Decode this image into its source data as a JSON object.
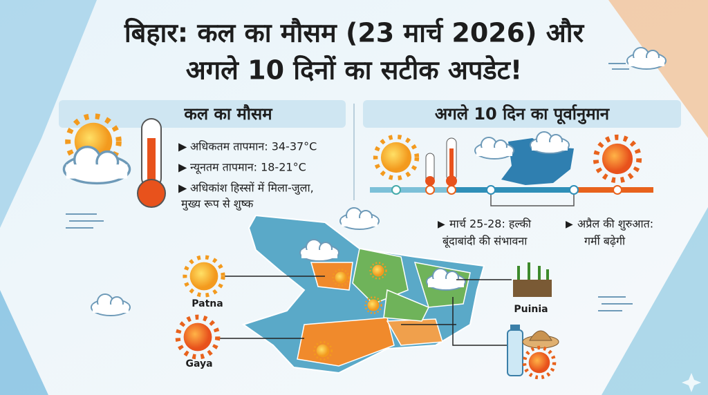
{
  "header": {
    "title_lines": [
      "बिहार: कल का मौसम (23 मार्च 2026) और",
      "अगले 10 दिनों का सटीक अपडेट!"
    ]
  },
  "tomorrow": {
    "heading": "कल का मौसम",
    "bullets": [
      [
        "अधिकतम तापमान: 34-37°C"
      ],
      [
        "न्यूनतम तापमान: 18-21°C"
      ],
      [
        "अधिकांश हिस्सों में मिला-जुला,",
        "मुख्य रूप से शुष्क"
      ]
    ]
  },
  "forecast": {
    "heading": "अगले 10 दिन का पूर्वानुमान",
    "notes": [
      [
        "मार्च 25-28: हल्की",
        "बूंदाबांदी की संभावना"
      ],
      [
        "अप्रैल की शुरुआत:",
        "गर्मी बढ़ेगी"
      ]
    ]
  },
  "map": {
    "labels": [
      "Patna",
      "Gaya",
      "Puinia"
    ]
  }
}
